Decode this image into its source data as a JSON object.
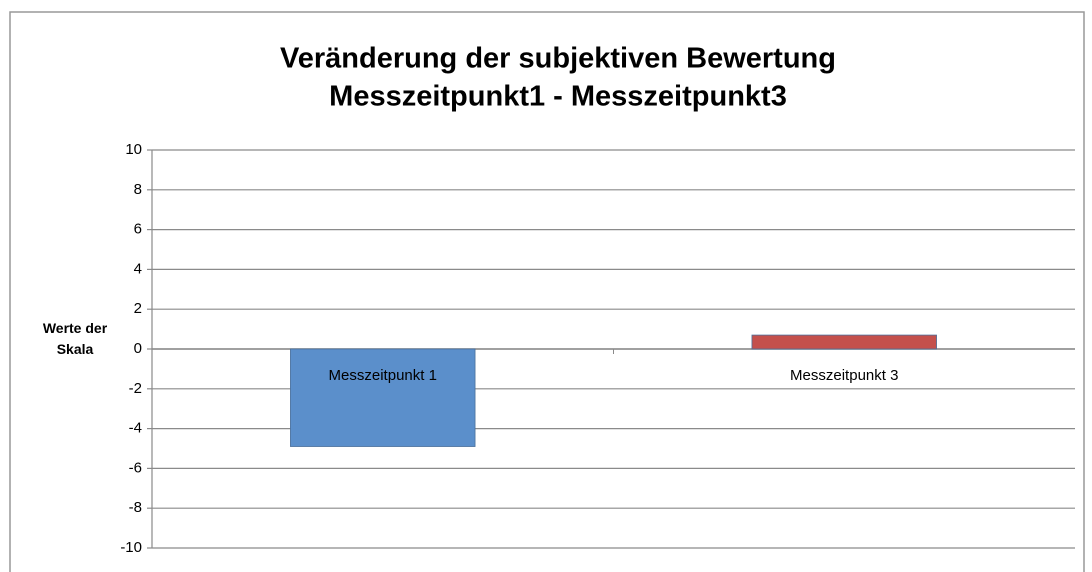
{
  "chart_data": {
    "type": "bar",
    "title": "Veränderung der subjektiven Bewertung",
    "subtitle": "Messzeitpunkt1 - Messzeitpunkt3",
    "y_label": "Werte der Skala",
    "categories": [
      "Messzeitpunkt 1",
      "Messzeitpunkt 3"
    ],
    "values": [
      -4.9,
      0.7
    ],
    "colors": [
      "#5b8fcb",
      "#c4504c"
    ],
    "ylim": [
      -10,
      10
    ],
    "yticks": [
      -10,
      -8,
      -6,
      -4,
      -2,
      0,
      2,
      4,
      6,
      8,
      10
    ],
    "grid": true
  }
}
